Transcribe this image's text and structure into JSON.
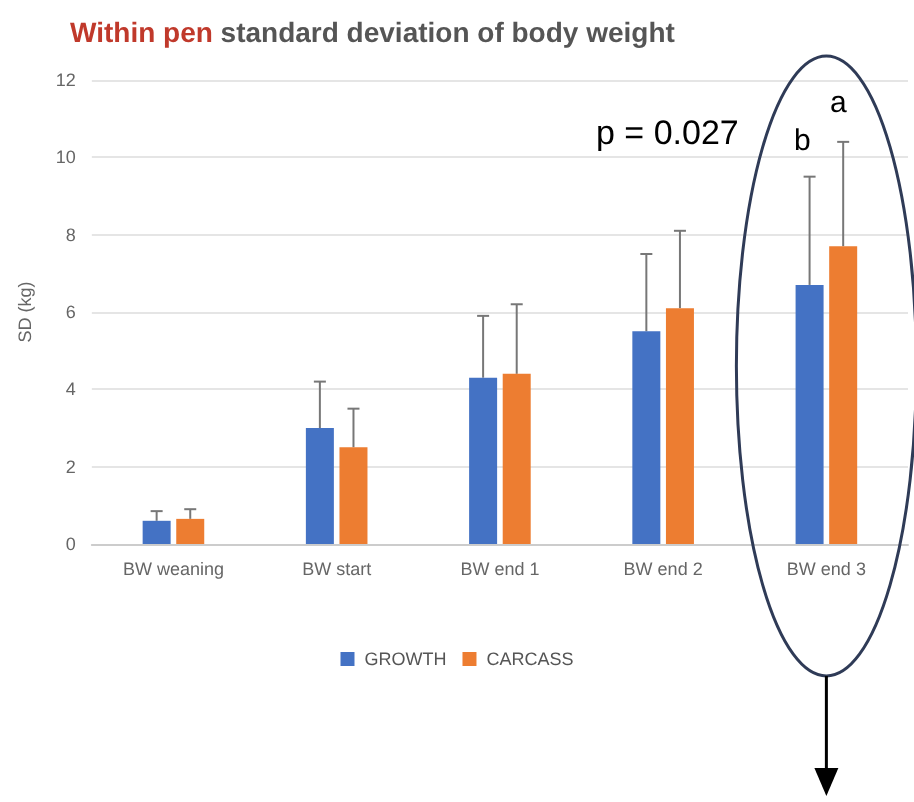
{
  "chart_data": {
    "type": "bar",
    "title": "Within pen standard deviation of body weight",
    "ylabel": "SD (kg)",
    "categories": [
      "BW weaning",
      "BW start",
      "BW end 1",
      "BW end 2",
      "BW end 3"
    ],
    "series": [
      {
        "name": "GROWTH",
        "color": "#4472c4",
        "values": [
          0.6,
          3.0,
          4.3,
          5.5,
          6.7
        ],
        "errors": [
          [
            0.6,
            0.85
          ],
          [
            3.0,
            4.2
          ],
          [
            4.3,
            5.9
          ],
          [
            5.5,
            7.5
          ],
          [
            6.7,
            9.5
          ]
        ]
      },
      {
        "name": "CARCASS",
        "color": "#ed7d31",
        "values": [
          0.65,
          2.5,
          4.4,
          6.1,
          7.7
        ],
        "errors": [
          [
            0.65,
            0.9
          ],
          [
            2.5,
            3.5
          ],
          [
            4.4,
            6.2
          ],
          [
            6.1,
            8.1
          ],
          [
            7.7,
            10.4
          ]
        ]
      }
    ],
    "ylim": [
      0,
      12
    ],
    "yticks": [
      0,
      2,
      4,
      6,
      8,
      10,
      12
    ],
    "grid": "y",
    "legend": "bottom",
    "annotations": [
      "p = 0.027",
      "b",
      "a"
    ]
  }
}
